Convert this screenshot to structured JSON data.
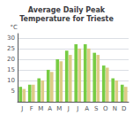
{
  "chart_data": {
    "type": "bar",
    "title": "Average Daily Peak\nTemperature for Trieste",
    "ylabel": "°C",
    "categories": [
      "J",
      "F",
      "M",
      "A",
      "M",
      "J",
      "J",
      "A",
      "S",
      "O",
      "N",
      "D"
    ],
    "series": [
      {
        "color": "#77cc44",
        "values": [
          7,
          8,
          11,
          15,
          20,
          24,
          27,
          27,
          23,
          17,
          11,
          8
        ]
      },
      {
        "color": "#ddcc88",
        "values": [
          6,
          8,
          10,
          14,
          19,
          22,
          25,
          25,
          22,
          16,
          10,
          7
        ]
      }
    ],
    "ylim": [
      0,
      32
    ],
    "yticks": [
      5,
      10,
      15,
      20,
      25,
      30
    ],
    "grid": true
  }
}
